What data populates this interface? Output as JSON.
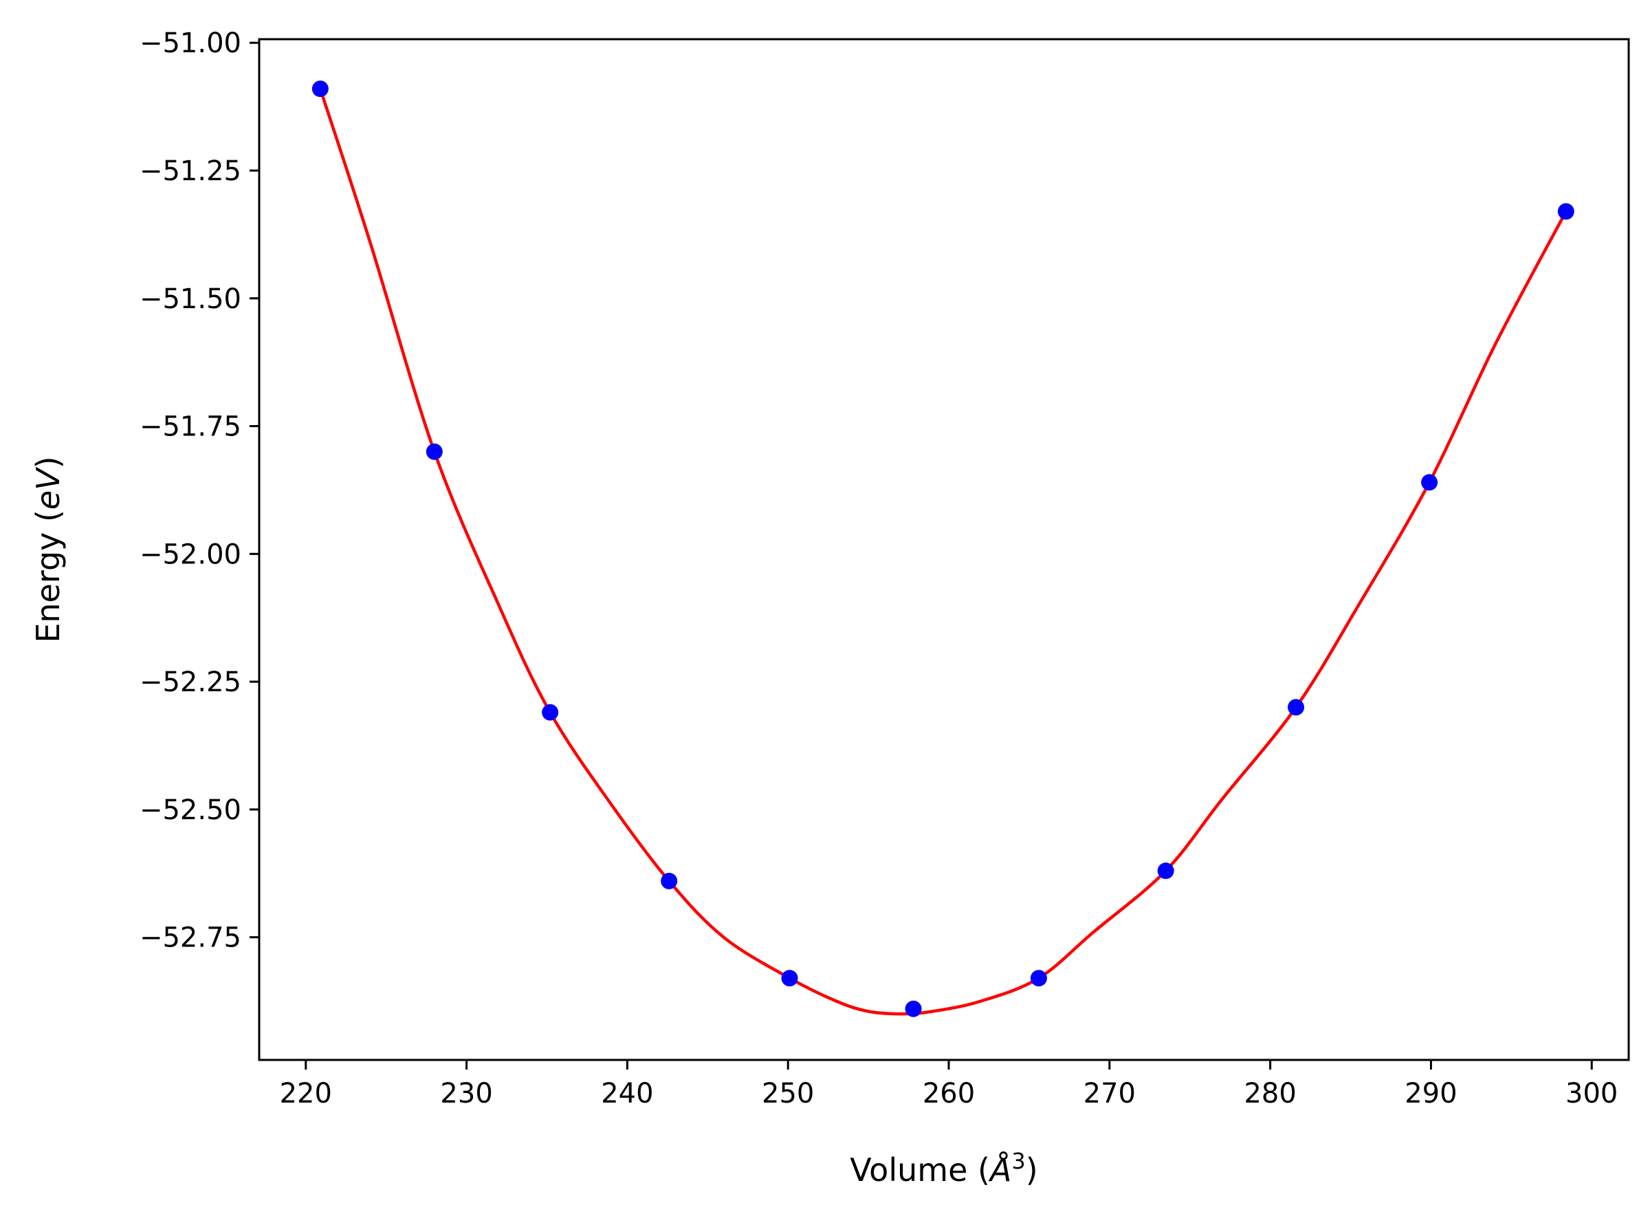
{
  "chart_data": {
    "type": "scatter",
    "title": "",
    "xlabel": {
      "prefix": "Volume (",
      "italic": "Å",
      "sup": "3",
      "suffix": ")"
    },
    "ylabel": {
      "prefix": "Energy (",
      "italic": "eV",
      "suffix": ")"
    },
    "xlim": [
      217.1,
      302.3
    ],
    "ylim": [
      -52.99,
      -50.993
    ],
    "xticks": [
      220,
      230,
      240,
      250,
      260,
      270,
      280,
      290,
      300
    ],
    "xtick_labels": [
      "220",
      "230",
      "240",
      "250",
      "260",
      "270",
      "280",
      "290",
      "300"
    ],
    "yticks": [
      -51.0,
      -51.25,
      -51.5,
      -51.75,
      -52.0,
      -52.25,
      -52.5,
      -52.75
    ],
    "ytick_labels": [
      "−51.00",
      "−51.25",
      "−51.50",
      "−51.75",
      "−52.00",
      "−52.25",
      "−52.50",
      "−52.75"
    ],
    "grid": false,
    "series": [
      {
        "kind": "points",
        "color": "#0000ff",
        "x": [
          220.9,
          228.0,
          235.2,
          242.6,
          250.1,
          257.8,
          265.6,
          273.5,
          281.6,
          289.9,
          298.4
        ],
        "y": [
          -51.09,
          -51.8,
          -52.31,
          -52.64,
          -52.83,
          -52.89,
          -52.83,
          -52.62,
          -52.3,
          -51.86,
          -51.33
        ]
      },
      {
        "kind": "fit-line",
        "color": "#ff0000",
        "x": [
          220.9,
          224.0,
          228.0,
          232.0,
          235.2,
          239.0,
          242.6,
          246.0,
          250.1,
          253.0,
          255.0,
          257.1,
          259.0,
          262.0,
          265.6,
          269.0,
          273.5,
          277.0,
          281.6,
          285.5,
          289.9,
          294.0,
          298.4
        ],
        "y": [
          -51.09,
          -51.39,
          -51.8,
          -52.1,
          -52.31,
          -52.49,
          -52.64,
          -52.75,
          -52.83,
          -52.875,
          -52.895,
          -52.9,
          -52.895,
          -52.875,
          -52.83,
          -52.74,
          -52.62,
          -52.48,
          -52.3,
          -52.1,
          -51.86,
          -51.59,
          -51.33
        ]
      }
    ]
  }
}
